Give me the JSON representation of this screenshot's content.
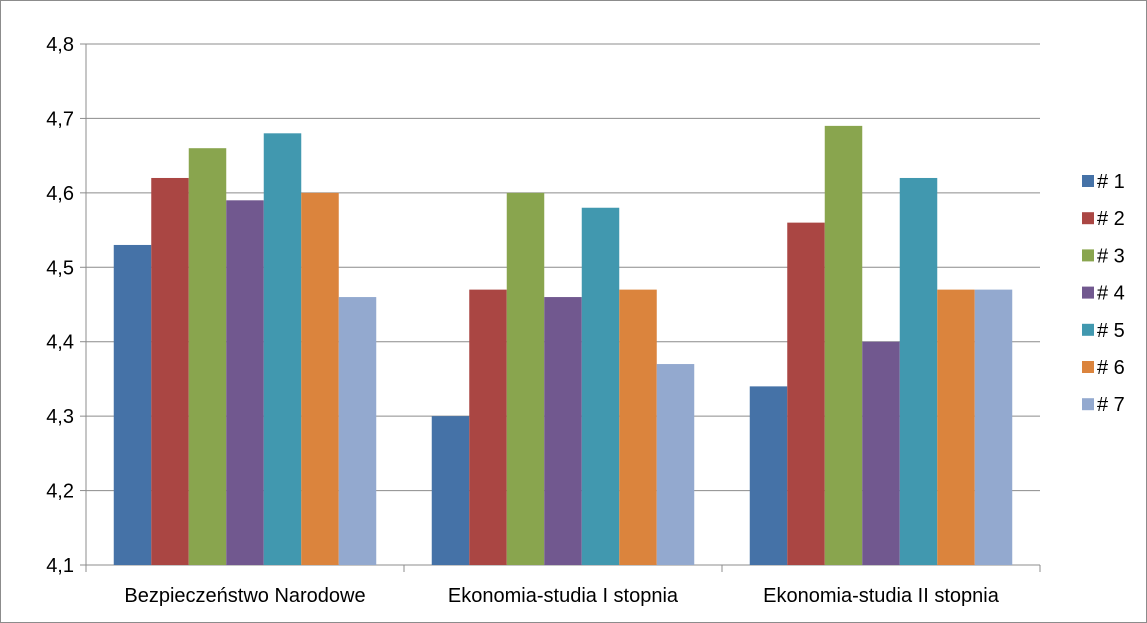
{
  "chart_data": {
    "type": "bar",
    "title": "",
    "xlabel": "",
    "ylabel": "",
    "categories": [
      "Bezpieczeństwo Narodowe",
      "Ekonomia-studia I stopnia",
      "Ekonomia-studia II stopnia"
    ],
    "ylim": [
      4.1,
      4.8
    ],
    "yticks": [
      "4,1",
      "4,2",
      "4,3",
      "4,4",
      "4,5",
      "4,6",
      "4,7",
      "4,8"
    ],
    "grid": true,
    "legend_position": "right",
    "series": [
      {
        "name": "# 1",
        "color": "#4572A7",
        "values": [
          4.53,
          4.3,
          4.34
        ]
      },
      {
        "name": "# 2",
        "color": "#AA4643",
        "values": [
          4.62,
          4.47,
          4.56
        ]
      },
      {
        "name": "# 3",
        "color": "#89A54E",
        "values": [
          4.66,
          4.6,
          4.69
        ]
      },
      {
        "name": "# 4",
        "color": "#71588F",
        "values": [
          4.59,
          4.46,
          4.4
        ]
      },
      {
        "name": "# 5",
        "color": "#4198AF",
        "values": [
          4.68,
          4.58,
          4.62
        ]
      },
      {
        "name": "# 6",
        "color": "#DB843D",
        "values": [
          4.6,
          4.47,
          4.47
        ]
      },
      {
        "name": "# 7",
        "color": "#93A9CF",
        "values": [
          4.46,
          4.37,
          4.47
        ]
      }
    ]
  }
}
